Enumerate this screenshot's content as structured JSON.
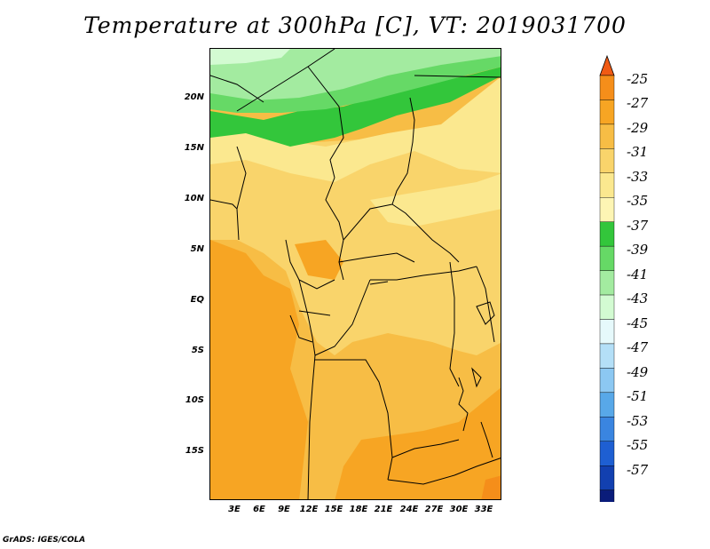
{
  "title": "Temperature at 300hPa [C], VT: 2019031700",
  "footer": "GrADS: IGES/COLA",
  "map": {
    "lat_labels": [
      "20N",
      "15N",
      "10N",
      "5N",
      "EQ",
      "5S",
      "10S",
      "15S"
    ],
    "lon_labels": [
      "3E",
      "6E",
      "9E",
      "12E",
      "15E",
      "18E",
      "21E",
      "24E",
      "27E",
      "30E",
      "33E"
    ]
  },
  "colorbar": {
    "labels": [
      "-25",
      "-27",
      "-29",
      "-31",
      "-33",
      "-35",
      "-37",
      "-39",
      "-41",
      "-43",
      "-45",
      "-47",
      "-49",
      "-51",
      "-53",
      "-55",
      "-57"
    ],
    "colors": [
      "#f05a14",
      "#f58e1a",
      "#f7a523",
      "#f7bd45",
      "#f9d46b",
      "#fbe88f",
      "#fdf5b4",
      "#33c63b",
      "#66d966",
      "#a3eba0",
      "#d3fbd2",
      "#e6f9fb",
      "#b4dff7",
      "#8cc8f2",
      "#58a8e8",
      "#3a85e0",
      "#1e5fd2",
      "#1240b0",
      "#0a1c7a",
      "#e3e2f8"
    ],
    "min_arrow_color": "#e3e2f8",
    "max_arrow_color": "#f05a14"
  },
  "field_colors": {
    "minus_27_to_29": "#f7a523",
    "minus_29_to_31": "#f7bd45",
    "minus_31_to_33": "#f9d46b",
    "minus_33_to_35": "#fbe88f",
    "minus_35_to_37": "#33c63b",
    "minus_37_to_39": "#66d966",
    "minus_39_to_41": "#a3eba0",
    "minus_41_to_43": "#d3fbd2"
  }
}
